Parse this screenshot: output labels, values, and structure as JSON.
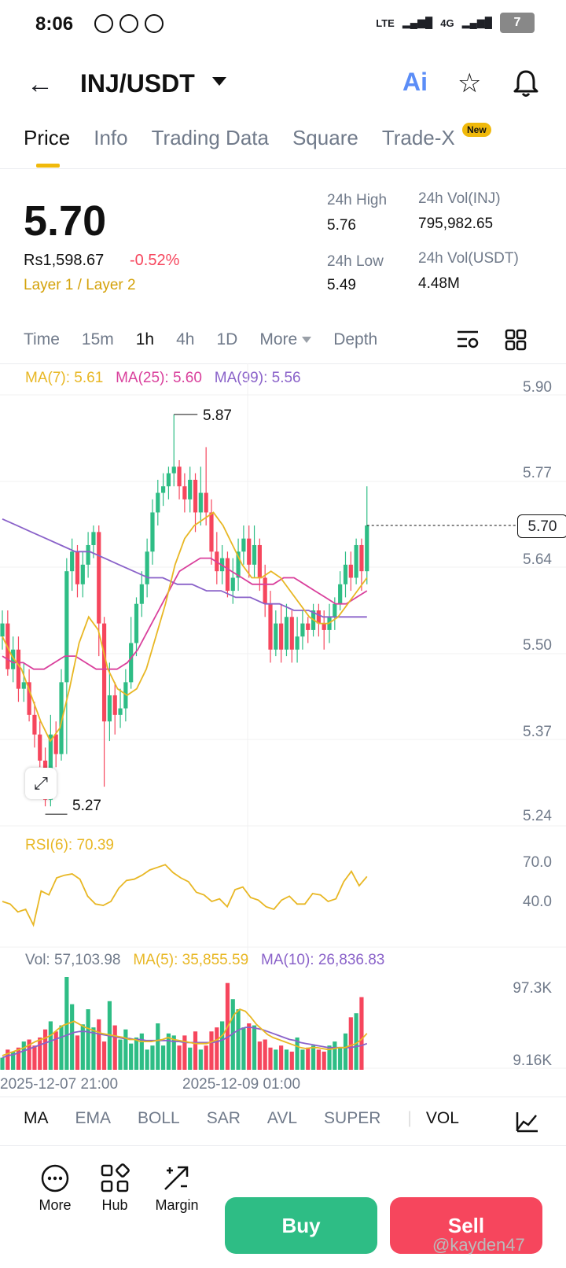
{
  "status": {
    "time": "8:06",
    "network": "4G",
    "battery": "7"
  },
  "header": {
    "pair": "INJ/USDT",
    "ai_label": "Ai"
  },
  "tabs": [
    "Price",
    "Info",
    "Trading Data",
    "Square",
    "Trade-X"
  ],
  "new_badge": "New",
  "ticker": {
    "price": "5.70",
    "fiat": "Rs1,598.67",
    "change": "-0.52%",
    "category": "Layer 1 / Layer 2",
    "high_label": "24h High",
    "high": "5.76",
    "low_label": "24h Low",
    "low": "5.49",
    "vol_base_label": "24h Vol(INJ)",
    "vol_base": "795,982.65",
    "vol_quote_label": "24h Vol(USDT)",
    "vol_quote": "4.48M"
  },
  "timebar": [
    "Time",
    "15m",
    "1h",
    "4h",
    "1D",
    "More",
    "Depth"
  ],
  "ma_legend": {
    "ma7": "MA(7): 5.61",
    "ma25": "MA(25): 5.60",
    "ma99": "MA(99): 5.56"
  },
  "colors": {
    "up": "#2ebd85",
    "down": "#f6465d",
    "ma7": "#e8b724",
    "ma25": "#d9409c",
    "ma99": "#8a62c9"
  },
  "chart_data": [
    {
      "type": "candlestick",
      "y_ticks": [
        "5.90",
        "5.77",
        "5.64",
        "5.50",
        "5.37",
        "5.24"
      ],
      "ylim": [
        5.24,
        5.9
      ],
      "high_marker": "5.87",
      "low_marker": "5.27",
      "last_price": "5.70",
      "candles": [
        [
          5.53,
          5.55,
          5.57,
          5.51
        ],
        [
          5.55,
          5.48,
          5.57,
          5.47
        ],
        [
          5.48,
          5.51,
          5.53,
          5.46
        ],
        [
          5.51,
          5.45,
          5.53,
          5.43
        ],
        [
          5.45,
          5.46,
          5.49,
          5.43
        ],
        [
          5.46,
          5.41,
          5.48,
          5.4
        ],
        [
          5.41,
          5.38,
          5.43,
          5.36
        ],
        [
          5.38,
          5.34,
          5.4,
          5.33
        ],
        [
          5.34,
          5.28,
          5.36,
          5.27
        ],
        [
          5.28,
          5.38,
          5.41,
          5.27
        ],
        [
          5.38,
          5.35,
          5.4,
          5.33
        ],
        [
          5.35,
          5.46,
          5.48,
          5.34
        ],
        [
          5.46,
          5.63,
          5.65,
          5.35
        ],
        [
          5.63,
          5.66,
          5.68,
          5.6
        ],
        [
          5.66,
          5.61,
          5.67,
          5.59
        ],
        [
          5.61,
          5.64,
          5.66,
          5.59
        ],
        [
          5.64,
          5.67,
          5.69,
          5.62
        ],
        [
          5.67,
          5.69,
          5.7,
          5.65
        ],
        [
          5.69,
          5.55,
          5.7,
          5.5
        ],
        [
          5.55,
          5.4,
          5.56,
          5.3
        ],
        [
          5.4,
          5.44,
          5.49,
          5.37
        ],
        [
          5.44,
          5.41,
          5.46,
          5.38
        ],
        [
          5.41,
          5.42,
          5.45,
          5.39
        ],
        [
          5.42,
          5.46,
          5.48,
          5.4
        ],
        [
          5.46,
          5.52,
          5.56,
          5.45
        ],
        [
          5.52,
          5.58,
          5.59,
          5.5
        ],
        [
          5.58,
          5.61,
          5.63,
          5.56
        ],
        [
          5.61,
          5.66,
          5.68,
          5.59
        ],
        [
          5.66,
          5.72,
          5.74,
          5.64
        ],
        [
          5.72,
          5.75,
          5.77,
          5.7
        ],
        [
          5.75,
          5.76,
          5.78,
          5.73
        ],
        [
          5.76,
          5.78,
          5.79,
          5.74
        ],
        [
          5.78,
          5.79,
          5.87,
          5.76
        ],
        [
          5.79,
          5.76,
          5.8,
          5.74
        ],
        [
          5.76,
          5.74,
          5.78,
          5.72
        ],
        [
          5.74,
          5.77,
          5.79,
          5.72
        ],
        [
          5.77,
          5.72,
          5.78,
          5.69
        ],
        [
          5.72,
          5.75,
          5.79,
          5.7
        ],
        [
          5.75,
          5.72,
          5.82,
          5.7
        ],
        [
          5.72,
          5.66,
          5.74,
          5.64
        ],
        [
          5.66,
          5.63,
          5.69,
          5.61
        ],
        [
          5.63,
          5.65,
          5.67,
          5.61
        ],
        [
          5.65,
          5.6,
          5.66,
          5.59
        ],
        [
          5.6,
          5.62,
          5.65,
          5.58
        ],
        [
          5.62,
          5.66,
          5.68,
          5.6
        ],
        [
          5.66,
          5.68,
          5.7,
          5.64
        ],
        [
          5.68,
          5.64,
          5.7,
          5.62
        ],
        [
          5.64,
          5.67,
          5.7,
          5.62
        ],
        [
          5.67,
          5.62,
          5.68,
          5.6
        ],
        [
          5.62,
          5.58,
          5.64,
          5.56
        ],
        [
          5.58,
          5.51,
          5.6,
          5.49
        ],
        [
          5.51,
          5.55,
          5.57,
          5.5
        ],
        [
          5.55,
          5.51,
          5.58,
          5.49
        ],
        [
          5.51,
          5.56,
          5.58,
          5.5
        ],
        [
          5.56,
          5.51,
          5.57,
          5.49
        ],
        [
          5.51,
          5.53,
          5.56,
          5.49
        ],
        [
          5.53,
          5.55,
          5.57,
          5.51
        ],
        [
          5.55,
          5.54,
          5.56,
          5.52
        ],
        [
          5.54,
          5.57,
          5.58,
          5.53
        ],
        [
          5.57,
          5.55,
          5.58,
          5.53
        ],
        [
          5.55,
          5.54,
          5.57,
          5.51
        ],
        [
          5.54,
          5.56,
          5.58,
          5.52
        ],
        [
          5.56,
          5.58,
          5.59,
          5.54
        ],
        [
          5.58,
          5.61,
          5.63,
          5.57
        ],
        [
          5.61,
          5.64,
          5.66,
          5.59
        ],
        [
          5.64,
          5.62,
          5.66,
          5.6
        ],
        [
          5.62,
          5.67,
          5.68,
          5.61
        ],
        [
          5.67,
          5.63,
          5.68,
          5.6
        ],
        [
          5.63,
          5.7,
          5.76,
          5.61
        ]
      ],
      "ma7": [
        5.53,
        5.5,
        5.48,
        5.44,
        5.4,
        5.37,
        5.39,
        5.45,
        5.52,
        5.56,
        5.54,
        5.48,
        5.45,
        5.44,
        5.45,
        5.48,
        5.53,
        5.58,
        5.64,
        5.68,
        5.7,
        5.71,
        5.72,
        5.7,
        5.67,
        5.64,
        5.62,
        5.62,
        5.63,
        5.62,
        5.6,
        5.58,
        5.56,
        5.55,
        5.55,
        5.56,
        5.58,
        5.6,
        5.62
      ],
      "ma25": [
        5.5,
        5.49,
        5.49,
        5.48,
        5.48,
        5.49,
        5.5,
        5.5,
        5.49,
        5.48,
        5.48,
        5.48,
        5.49,
        5.51,
        5.54,
        5.57,
        5.6,
        5.63,
        5.64,
        5.65,
        5.65,
        5.64,
        5.63,
        5.62,
        5.61,
        5.61,
        5.61,
        5.62,
        5.62,
        5.61,
        5.6,
        5.59,
        5.58,
        5.58,
        5.59,
        5.6
      ],
      "ma99": [
        5.71,
        5.7,
        5.69,
        5.68,
        5.67,
        5.66,
        5.66,
        5.65,
        5.64,
        5.63,
        5.62,
        5.62,
        5.61,
        5.61,
        5.6,
        5.6,
        5.59,
        5.59,
        5.58,
        5.58,
        5.57,
        5.57,
        5.56,
        5.56,
        5.56,
        5.56
      ]
    },
    {
      "type": "line",
      "label": "RSI(6): 70.39",
      "y_ticks": [
        "70.0",
        "40.0"
      ],
      "values": [
        40,
        38,
        32,
        34,
        22,
        48,
        45,
        58,
        60,
        61,
        57,
        44,
        38,
        37,
        40,
        50,
        56,
        57,
        60,
        64,
        66,
        68,
        62,
        58,
        55,
        47,
        45,
        40,
        42,
        36,
        49,
        51,
        43,
        41,
        36,
        34,
        41,
        44,
        38,
        38,
        46,
        45,
        40,
        42,
        55,
        63,
        52,
        59
      ]
    },
    {
      "type": "bar",
      "label_vol": "Vol: 57,103.98",
      "label_ma5": "MA(5): 35,855.59",
      "label_ma10": "MA(10): 26,836.83",
      "y_ticks": [
        "97.3K",
        "9.16K"
      ],
      "x_ticks": [
        "2025-12-07 21:00",
        "2025-12-09 01:00"
      ],
      "values": [
        12,
        20,
        18,
        22,
        28,
        30,
        24,
        32,
        40,
        48,
        38,
        44,
        92,
        65,
        34,
        45,
        60,
        42,
        50,
        28,
        68,
        44,
        30,
        40,
        26,
        32,
        36,
        20,
        24,
        46,
        24,
        36,
        34,
        24,
        34,
        22,
        38,
        20,
        24,
        38,
        42,
        48,
        86,
        70,
        60,
        42,
        46,
        44,
        28,
        30,
        22,
        20,
        24,
        20,
        18,
        32,
        20,
        22,
        24,
        20,
        18,
        24,
        28,
        22,
        36,
        52,
        56,
        72
      ],
      "ma5": [
        14,
        16,
        18,
        20,
        22,
        25,
        28,
        30,
        32,
        35,
        40,
        44,
        46,
        48,
        45,
        42,
        40,
        38,
        36,
        35,
        34,
        33,
        32,
        30,
        30,
        28,
        28,
        28,
        29,
        30,
        32,
        30,
        29,
        28,
        27,
        26,
        26,
        26,
        28,
        30,
        35,
        45,
        55,
        60,
        58,
        52,
        45,
        40,
        35,
        32,
        30,
        28,
        26,
        24,
        22,
        21,
        22,
        22,
        21,
        20,
        21,
        22,
        22,
        24,
        26,
        30,
        36
      ],
      "ma10": [
        12,
        14,
        15,
        17,
        19,
        21,
        23,
        25,
        27,
        29,
        31,
        33,
        35,
        37,
        38,
        38,
        37,
        36,
        35,
        34,
        33,
        32,
        31,
        31,
        30,
        30,
        29,
        29,
        29,
        29,
        29,
        28,
        28,
        27,
        27,
        27,
        27,
        27,
        27,
        28,
        30,
        33,
        37,
        40,
        42,
        42,
        41,
        40,
        38,
        36,
        34,
        32,
        30,
        29,
        27,
        26,
        25,
        24,
        23,
        22,
        22,
        22,
        22,
        22,
        23,
        24,
        26
      ]
    }
  ],
  "indicator_tabs": [
    "MA",
    "EMA",
    "BOLL",
    "SAR",
    "AVL",
    "SUPER",
    "VOL"
  ],
  "bottom_nav": {
    "more": "More",
    "hub": "Hub",
    "margin": "Margin",
    "buy": "Buy",
    "sell": "Sell"
  },
  "watermark_text": "@kayden47"
}
